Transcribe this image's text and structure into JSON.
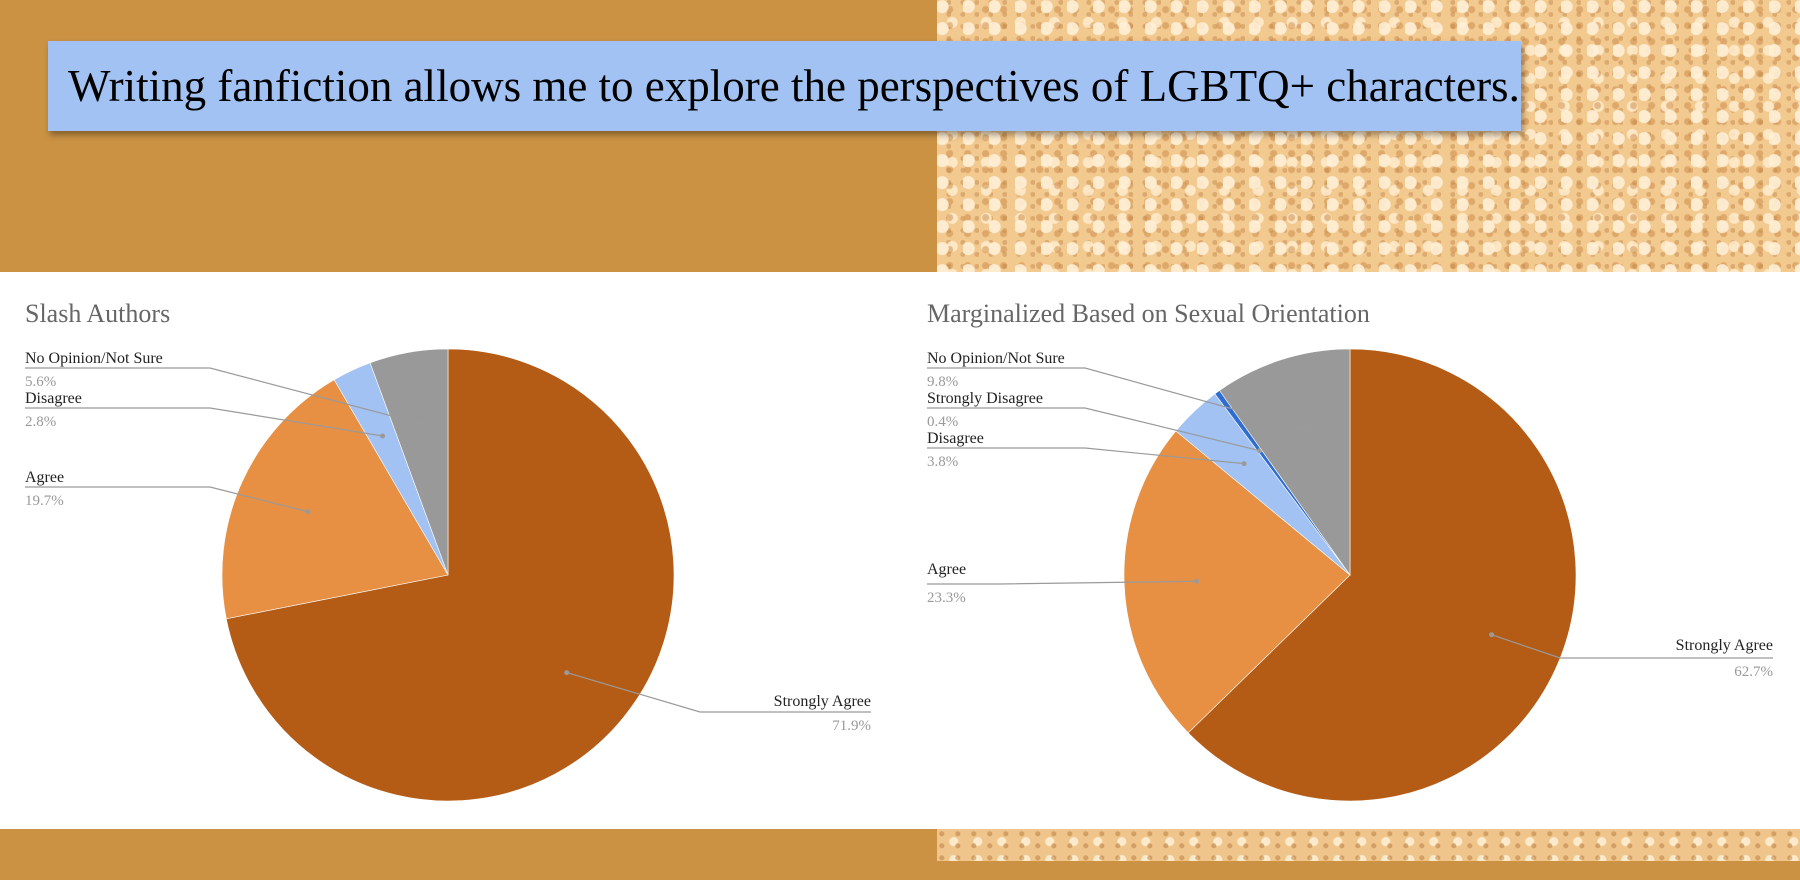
{
  "slide": {
    "title": "Writing fanfiction allows me to explore the perspectives of LGBTQ+ characters."
  },
  "colors": {
    "background": "#cb9244",
    "title_box": "#a1c2f2",
    "strongly_agree": "#b45c16",
    "agree": "#e78f43",
    "disagree": "#a1c2f2",
    "strongly_disagree": "#2f6ed0",
    "no_opinion": "#999999",
    "chart_title": "#666666",
    "label": "#222222",
    "percent": "#999999",
    "leader": "#9a9a9a"
  },
  "chart_data": [
    {
      "type": "pie",
      "title": "Slash Authors",
      "slices": [
        {
          "label": "Strongly Agree",
          "value": 71.9,
          "display": "71.9%",
          "color": "#b45c16"
        },
        {
          "label": "Agree",
          "value": 19.7,
          "display": "19.7%",
          "color": "#e78f43"
        },
        {
          "label": "Disagree",
          "value": 2.8,
          "display": "2.8%",
          "color": "#a1c2f2"
        },
        {
          "label": "No Opinion/Not Sure",
          "value": 5.6,
          "display": "5.6%",
          "color": "#999999"
        }
      ]
    },
    {
      "type": "pie",
      "title": "Marginalized Based on Sexual Orientation",
      "slices": [
        {
          "label": "Strongly Agree",
          "value": 62.7,
          "display": "62.7%",
          "color": "#b45c16"
        },
        {
          "label": "Agree",
          "value": 23.3,
          "display": "23.3%",
          "color": "#e78f43"
        },
        {
          "label": "Disagree",
          "value": 3.8,
          "display": "3.8%",
          "color": "#a1c2f2"
        },
        {
          "label": "Strongly Disagree",
          "value": 0.4,
          "display": "0.4%",
          "color": "#2f6ed0"
        },
        {
          "label": "No Opinion/Not Sure",
          "value": 9.8,
          "display": "9.8%",
          "color": "#999999"
        }
      ]
    }
  ]
}
